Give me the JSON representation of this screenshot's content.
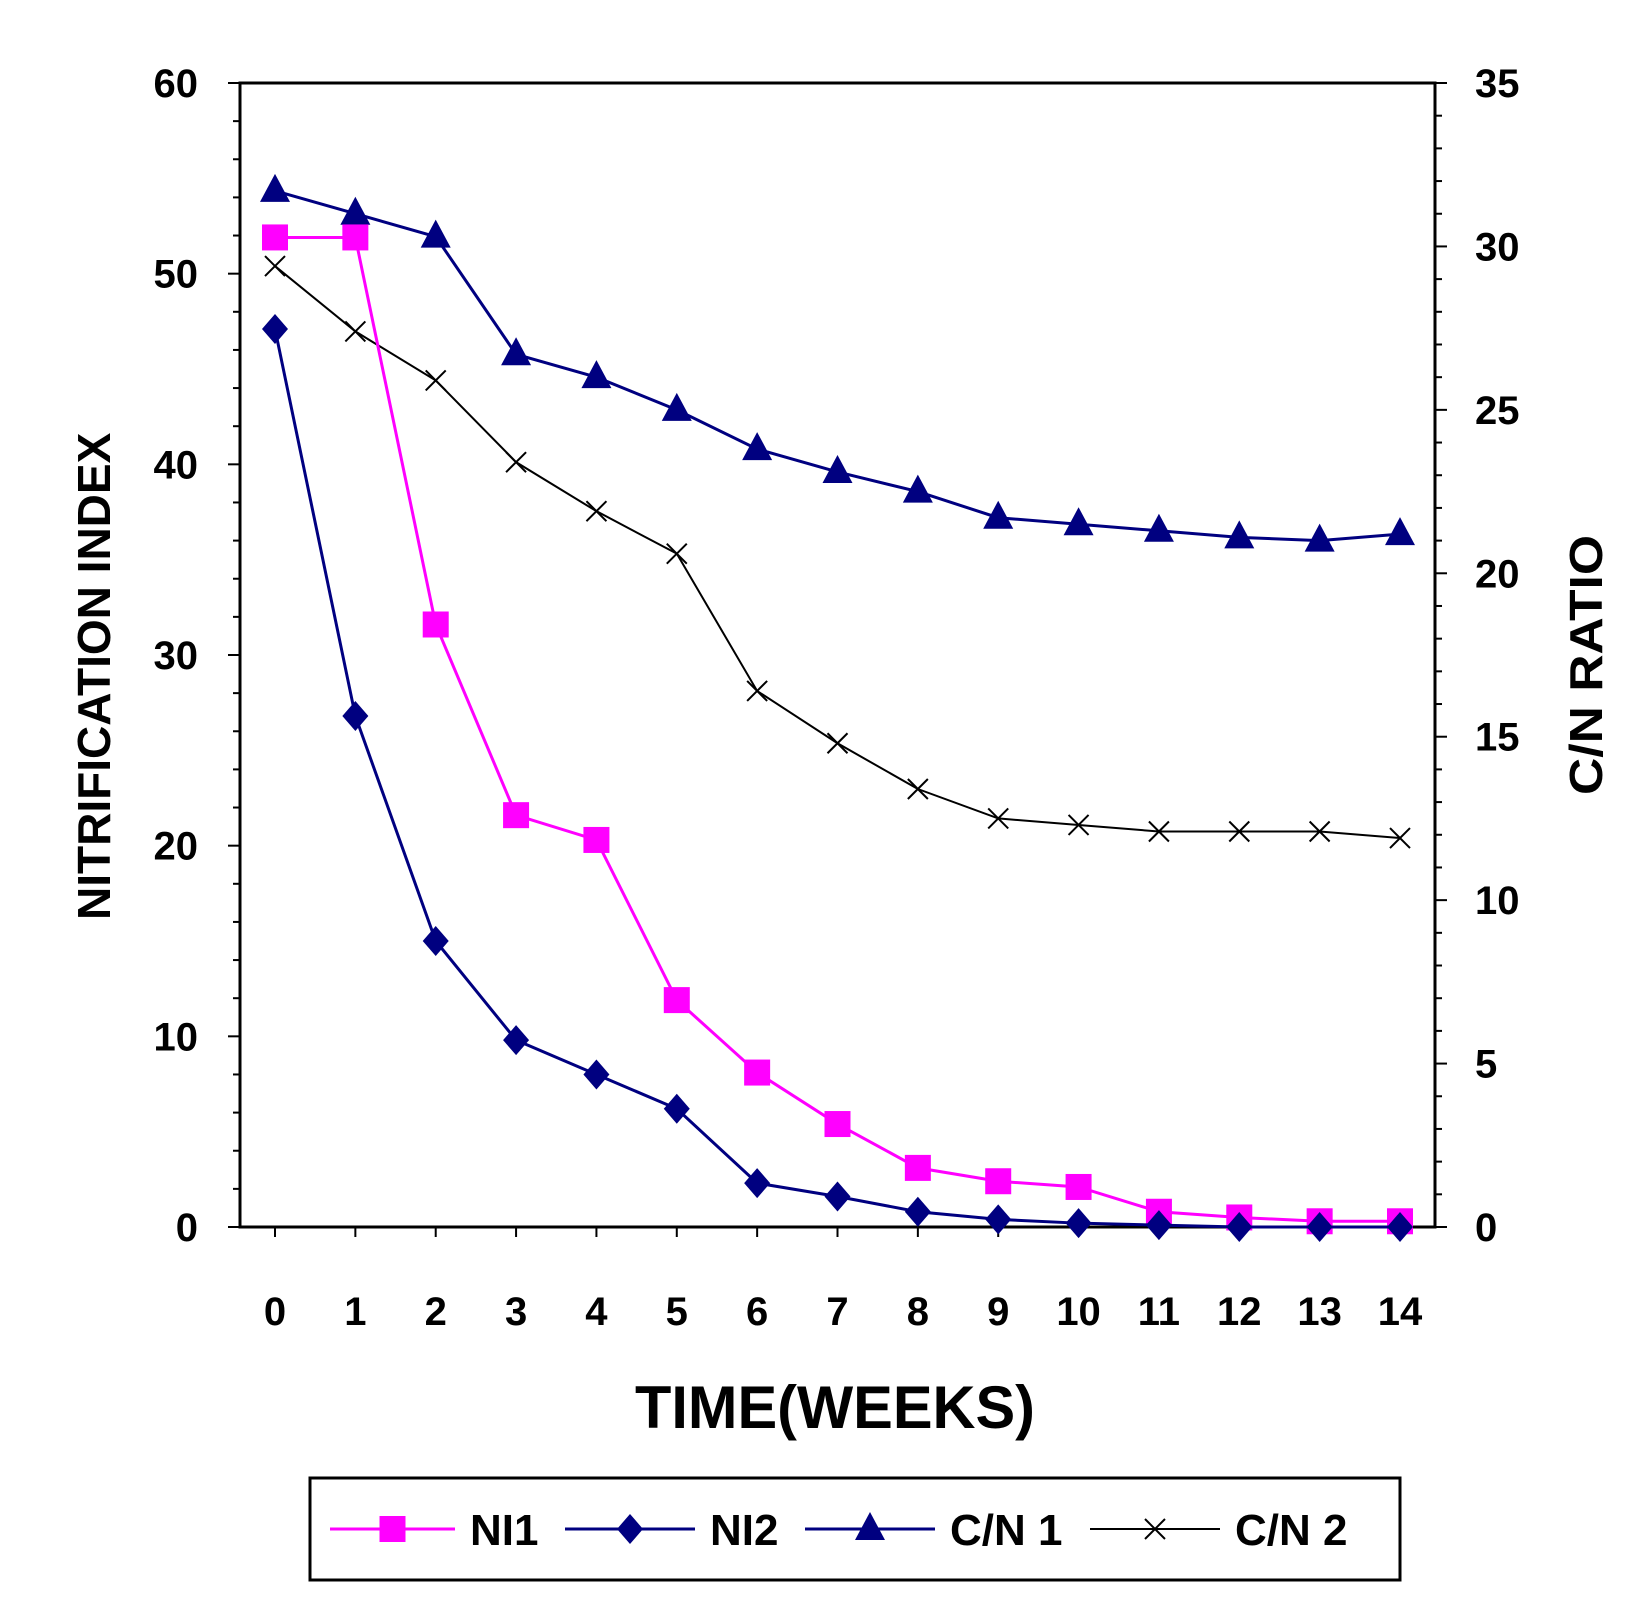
{
  "chart_data": {
    "type": "line",
    "title": "",
    "xlabel": "TIME(WEEKS)",
    "ylabel": "NITRIFICATION INDEX",
    "ylabel_right": "C/N RATIO",
    "x": [
      0,
      1,
      2,
      3,
      4,
      5,
      6,
      7,
      8,
      9,
      10,
      11,
      12,
      13,
      14
    ],
    "xlim": [
      0,
      14
    ],
    "ylim": [
      0,
      60
    ],
    "ylim_right": [
      0,
      35
    ],
    "yticks": [
      0,
      10,
      20,
      30,
      40,
      50,
      60
    ],
    "yticks_right": [
      0,
      5,
      10,
      15,
      20,
      25,
      30,
      35
    ],
    "grid": false,
    "legend_position": "bottom",
    "series": [
      {
        "name": "NI1",
        "axis": "left",
        "color": "#ff00ff",
        "marker": "square",
        "values": [
          51.9,
          51.9,
          31.6,
          21.6,
          20.3,
          11.9,
          8.1,
          5.4,
          3.1,
          2.4,
          2.1,
          0.8,
          0.5,
          0.3,
          0.3
        ]
      },
      {
        "name": "NI2",
        "axis": "left",
        "color": "#000080",
        "marker": "diamond",
        "values": [
          47.1,
          26.8,
          15.0,
          9.8,
          8.0,
          6.2,
          2.3,
          1.6,
          0.8,
          0.4,
          0.2,
          0.1,
          0.0,
          0.0,
          0.0
        ]
      },
      {
        "name": "C/N 1",
        "axis": "right",
        "color": "#000080",
        "marker": "triangle",
        "values": [
          31.7,
          31.0,
          30.3,
          26.7,
          26.0,
          25.0,
          23.8,
          23.1,
          22.5,
          21.7,
          21.5,
          21.3,
          21.1,
          21.0,
          21.2
        ]
      },
      {
        "name": "C/N 2",
        "axis": "right",
        "color": "#000000",
        "marker": "x",
        "values": [
          29.4,
          27.4,
          25.9,
          23.4,
          21.9,
          20.6,
          16.4,
          14.8,
          13.4,
          12.5,
          12.3,
          12.1,
          12.1,
          12.1,
          11.9
        ]
      }
    ]
  }
}
